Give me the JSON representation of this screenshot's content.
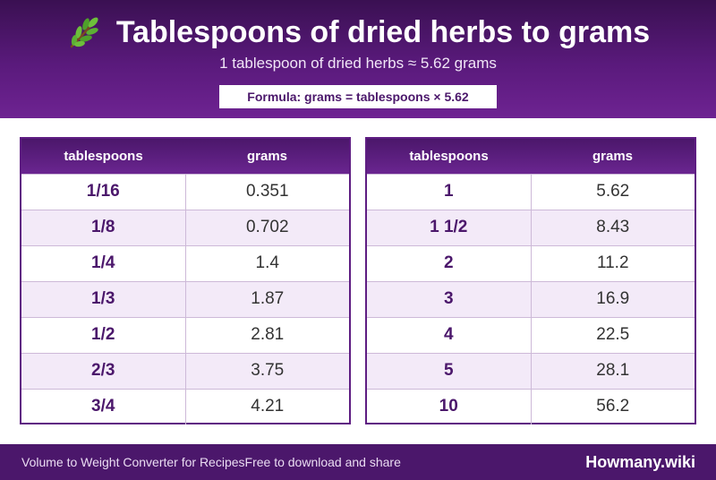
{
  "header": {
    "title": "Tablespoons of dried herbs to grams",
    "subtitle": "1 tablespoon of dried herbs ≈ 5.62 grams",
    "formula": "Formula: grams = tablespoons × 5.62",
    "icon": "herb-sprig-icon"
  },
  "tables": {
    "left": {
      "headers": [
        "tablespoons",
        "grams"
      ],
      "rows": [
        {
          "q": "1/16",
          "v": "0.351"
        },
        {
          "q": "1/8",
          "v": "0.702"
        },
        {
          "q": "1/4",
          "v": "1.4"
        },
        {
          "q": "1/3",
          "v": "1.87"
        },
        {
          "q": "1/2",
          "v": "2.81"
        },
        {
          "q": "2/3",
          "v": "3.75"
        },
        {
          "q": "3/4",
          "v": "4.21"
        }
      ]
    },
    "right": {
      "headers": [
        "tablespoons",
        "grams"
      ],
      "rows": [
        {
          "q": "1",
          "v": "5.62"
        },
        {
          "q": "1 1/2",
          "v": "8.43"
        },
        {
          "q": "2",
          "v": "11.2"
        },
        {
          "q": "3",
          "v": "16.9"
        },
        {
          "q": "4",
          "v": "22.5"
        },
        {
          "q": "5",
          "v": "28.1"
        },
        {
          "q": "10",
          "v": "56.2"
        }
      ]
    }
  },
  "footer": {
    "left_text": "Volume to Weight Converter for RecipesFree to download and share",
    "brand": "Howmany.wiki"
  },
  "colors": {
    "accent": "#4b176b",
    "header_gradient_top": "#3a1052",
    "row_alt": "#f3eaf8"
  }
}
